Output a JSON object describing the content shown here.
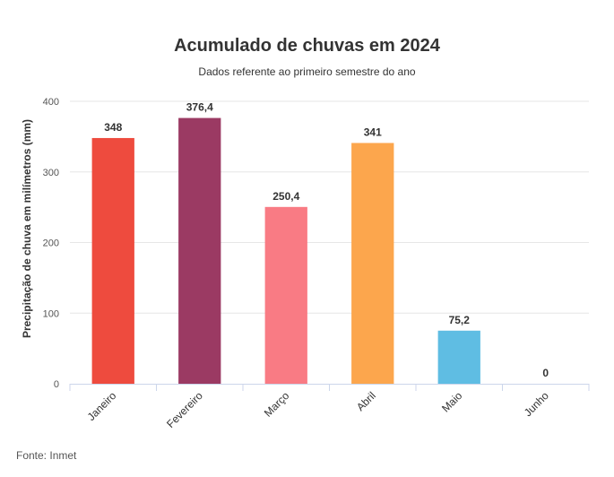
{
  "chart_data": {
    "type": "bar",
    "title": "Acumulado de chuvas em 2024",
    "subtitle": "Dados referente ao primeiro semestre do ano",
    "xlabel": "",
    "ylabel": "Precipitação de chuva em milímetros (mm)",
    "categories": [
      "Janeiro",
      "Fevereiro",
      "Março",
      "Abril",
      "Maio",
      "Junho"
    ],
    "values": [
      348,
      376.4,
      250.4,
      341,
      75.2,
      0
    ],
    "value_labels": [
      "348",
      "376,4",
      "250,4",
      "341",
      "75,2",
      "0"
    ],
    "colors": [
      "#ee4b3e",
      "#9b3a63",
      "#f97b84",
      "#fca64d",
      "#5fbde3",
      "#5fbde3"
    ],
    "yticks": [
      0,
      100,
      200,
      300,
      400
    ],
    "ylim": [
      0,
      400
    ],
    "grid": true,
    "legend": "none"
  },
  "source": "Fonte: Inmet"
}
